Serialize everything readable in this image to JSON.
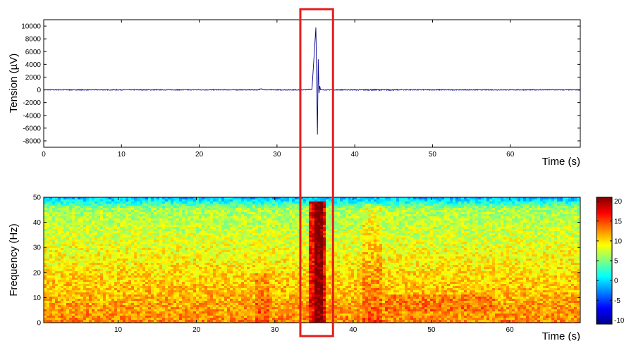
{
  "chart_data": [
    {
      "type": "line",
      "title": "",
      "xlabel": "Time (s)",
      "ylabel": "Tension (µV)",
      "xlim": [
        0,
        69
      ],
      "ylim": [
        -9000,
        11000
      ],
      "xticks": [
        0,
        10,
        20,
        30,
        40,
        50,
        60
      ],
      "yticks": [
        -8000,
        -6000,
        -4000,
        -2000,
        0,
        2000,
        4000,
        6000,
        8000,
        10000
      ],
      "grid": false,
      "line_color": "#00008b",
      "series": [
        {
          "x": [
            0,
            27.5,
            28.0,
            28.5,
            33.5,
            34.5,
            35.0,
            35.2,
            35.3,
            35.4,
            35.5,
            35.6,
            35.8,
            36.5,
            40,
            45,
            69
          ],
          "y": [
            0,
            0,
            150,
            0,
            0,
            120,
            9800,
            -7000,
            4800,
            -500,
            600,
            0,
            0,
            0,
            0,
            0,
            0
          ]
        }
      ],
      "annotations": [
        {
          "type": "highlight-rectangle",
          "x_range": [
            33.0,
            37.2
          ],
          "color": "#e41e1e"
        }
      ]
    },
    {
      "type": "heatmap",
      "title": "",
      "xlabel": "Time (s)",
      "ylabel": "Frequency (Hz)",
      "xlim": [
        0.5,
        69
      ],
      "ylim": [
        0,
        50
      ],
      "xticks": [
        10,
        20,
        30,
        40,
        50,
        60
      ],
      "yticks": [
        0,
        10,
        20,
        30,
        40,
        50
      ],
      "colormap": "jet",
      "colorbar": {
        "range": [
          -11,
          21
        ],
        "ticks": [
          -10,
          -5,
          0,
          5,
          10,
          15,
          20
        ],
        "placement": "right"
      },
      "description_features": [
        {
          "feature": "high power band",
          "time_range": [
            34.8,
            35.9
          ],
          "frequency_range": [
            0,
            50
          ],
          "value": 21
        },
        {
          "feature": "elevated low-frequency power",
          "frequency_range": [
            0,
            25
          ],
          "value": 13
        },
        {
          "feature": "lower power near top",
          "frequency_range": [
            45,
            50
          ],
          "value": 4
        }
      ]
    }
  ]
}
